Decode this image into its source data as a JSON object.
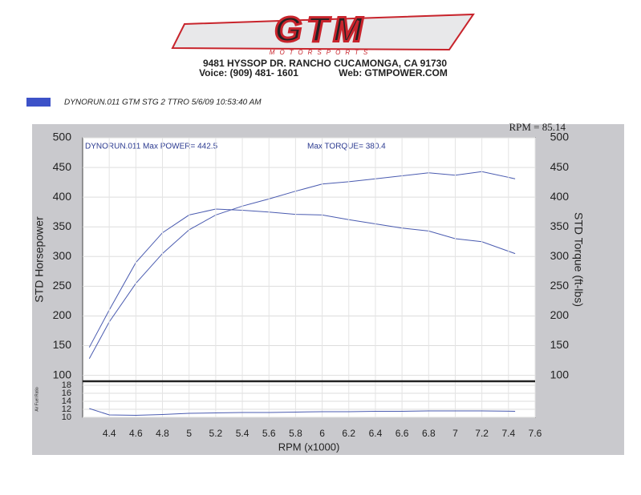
{
  "header": {
    "logo": "GTM",
    "logo_sub": "MOTORSPORTS",
    "address": "9481 HYSSOP DR. RANCHO CUCAMONGA, CA 91730",
    "phone": "Voice: (909) 481- 1601",
    "web": "Web: GTMPOWER.COM"
  },
  "run_legend": {
    "label": "DYNORUN.011   GTM STG 2 TTRO  5/6/09 10:53:40 AM",
    "color": "#3d52c8"
  },
  "chart_data": [
    {
      "type": "line",
      "ylabel": "STD Horsepower",
      "y2label": "STD Torque (ft-lbs)",
      "annotations": [
        "DYNORUN.011  Max POWER= 442.5",
        "Max TORQUE= 380.4",
        "RPM = 85.14"
      ],
      "x": [
        4.25,
        4.4,
        4.6,
        4.8,
        5.0,
        5.2,
        5.4,
        5.6,
        5.8,
        6.0,
        6.2,
        6.4,
        6.6,
        6.8,
        7.0,
        7.2,
        7.45
      ],
      "series": [
        {
          "color": "#4a5bb0",
          "values": [
            128,
            190,
            255,
            305,
            345,
            370,
            385,
            397,
            410,
            422,
            426,
            431,
            436,
            441,
            437,
            443,
            431
          ]
        },
        {
          "color": "#4a5bb0",
          "axis": "y2",
          "values": [
            147,
            210,
            290,
            340,
            370,
            380,
            378,
            375,
            371,
            370,
            362,
            355,
            348,
            343,
            330,
            325,
            305
          ]
        }
      ],
      "xlim": [
        4.2,
        7.6
      ],
      "ylim": [
        90,
        500
      ],
      "yticks": [
        100,
        150,
        200,
        250,
        300,
        350,
        400,
        450,
        500
      ],
      "y2lim": [
        90,
        500
      ],
      "y2ticks": [
        100,
        150,
        200,
        250,
        300,
        350,
        400,
        450,
        500
      ],
      "grid": true
    },
    {
      "type": "line",
      "ylabel": "Air Fuel Ratio",
      "xlabel": "RPM (x1000)",
      "x": [
        4.25,
        4.4,
        4.6,
        4.8,
        5.0,
        5.2,
        5.4,
        5.6,
        5.8,
        6.0,
        6.2,
        6.4,
        6.6,
        6.8,
        7.0,
        7.2,
        7.45
      ],
      "series": [
        {
          "color": "#4a5bb0",
          "values": [
            12.2,
            10.6,
            10.5,
            10.7,
            11.0,
            11.1,
            11.2,
            11.2,
            11.3,
            11.4,
            11.4,
            11.5,
            11.5,
            11.6,
            11.6,
            11.6,
            11.5
          ]
        }
      ],
      "xlim": [
        4.2,
        7.6
      ],
      "xticks": [
        4.4,
        4.6,
        4.8,
        5.0,
        5.2,
        5.4,
        5.6,
        5.8,
        6.0,
        6.2,
        6.4,
        6.6,
        6.8,
        7.0,
        7.2,
        7.4,
        7.6
      ],
      "ylim": [
        10,
        19
      ],
      "yticks": [
        10,
        12,
        14,
        16,
        18
      ],
      "grid": true
    }
  ]
}
